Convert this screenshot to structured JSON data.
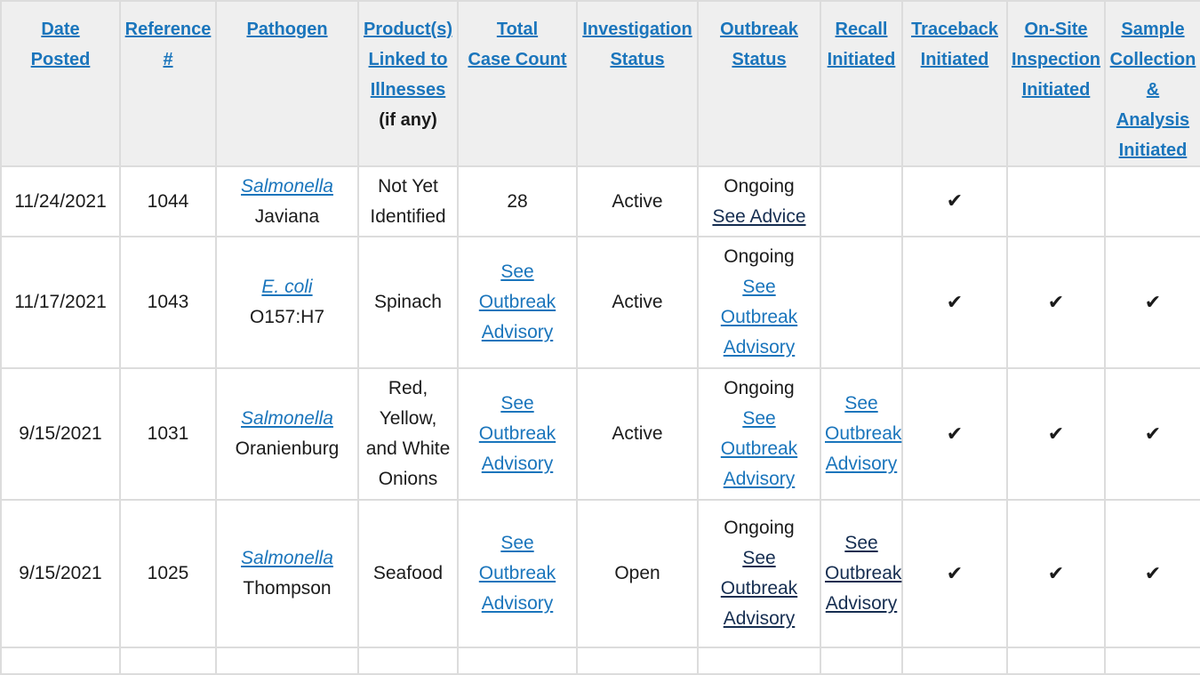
{
  "headers": {
    "date": [
      "Date",
      "Posted"
    ],
    "ref": [
      "Reference",
      "#"
    ],
    "pathogen": [
      "Pathogen"
    ],
    "product": [
      "Product(s)",
      "Linked to",
      "Illnesses"
    ],
    "product_note": "(if any)",
    "cases": [
      "Total",
      "Case Count"
    ],
    "investigation": [
      "Investigation",
      "Status"
    ],
    "outbreak": [
      "Outbreak",
      "Status"
    ],
    "recall": [
      "Recall",
      "Initiated"
    ],
    "traceback": [
      "Traceback",
      "Initiated"
    ],
    "onsite": [
      "On-Site",
      "Inspection",
      "Initiated"
    ],
    "sample": [
      "Sample",
      "Collection",
      "&",
      "Analysis",
      "Initiated"
    ]
  },
  "check_mark": "✔",
  "rows": [
    {
      "date": "11/24/2021",
      "ref": "1044",
      "pathogen_genus": "Salmonella",
      "pathogen_rest": "Javiana",
      "product": [
        "Not Yet",
        "Identified"
      ],
      "cases": "28",
      "investigation": "Active",
      "outbreak_status": "Ongoing",
      "outbreak_link": [
        "See Advice"
      ]
    },
    {
      "date": "11/17/2021",
      "ref": "1043",
      "pathogen_genus": "E. coli",
      "pathogen_rest": "O157:H7",
      "product": [
        "Spinach"
      ],
      "cases_link": [
        "See",
        "Outbreak",
        "Advisory"
      ],
      "investigation": "Active",
      "outbreak_status": "Ongoing",
      "outbreak_link": [
        "See",
        "Outbreak",
        "Advisory"
      ]
    },
    {
      "date": "9/15/2021",
      "ref": "1031",
      "pathogen_genus": "Salmonella",
      "pathogen_rest": "Oranienburg",
      "product": [
        "Red,",
        "Yellow,",
        "and White",
        "Onions"
      ],
      "cases_link": [
        "See",
        "Outbreak",
        "Advisory"
      ],
      "investigation": "Active",
      "outbreak_status": "Ongoing",
      "outbreak_link": [
        "See",
        "Outbreak",
        "Advisory"
      ],
      "recall_link": [
        "See",
        "Outbreak",
        "Advisory"
      ]
    },
    {
      "date": "9/15/2021",
      "ref": "1025",
      "pathogen_genus": "Salmonella",
      "pathogen_rest": "Thompson",
      "product": [
        "Seafood"
      ],
      "cases_link": [
        "See",
        "Outbreak",
        "Advisory"
      ],
      "investigation": "Open",
      "outbreak_status": "Ongoing",
      "outbreak_link": [
        "See",
        "Outbreak",
        "Advisory"
      ],
      "recall_link": [
        "See",
        "Outbreak",
        "Advisory"
      ]
    }
  ]
}
